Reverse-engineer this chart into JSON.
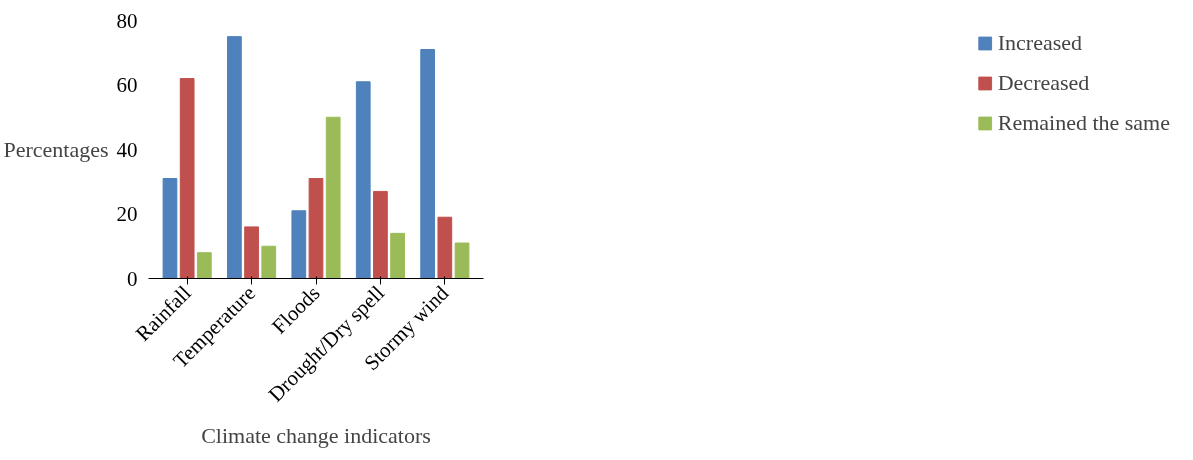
{
  "chart_data": {
    "type": "bar",
    "xlabel": "Climate change indicators",
    "ylabel": "Percentages",
    "categories": [
      "Rainfall",
      "Temperature",
      "Floods",
      "Drought/Dry spell",
      "Stormy wind"
    ],
    "series": [
      {
        "name": "Increased",
        "color": "#4f81bd",
        "values": [
          31,
          75,
          21,
          61,
          71
        ]
      },
      {
        "name": "Decreased",
        "color": "#c0504d",
        "values": [
          62,
          16,
          31,
          27,
          19
        ]
      },
      {
        "name": "Remained the same",
        "color": "#9bbb59",
        "values": [
          8,
          10,
          50,
          14,
          11
        ]
      }
    ],
    "ylim": [
      0,
      80
    ],
    "yticks": [
      0,
      20,
      40,
      60,
      80
    ],
    "grid": false,
    "legend": "right"
  }
}
